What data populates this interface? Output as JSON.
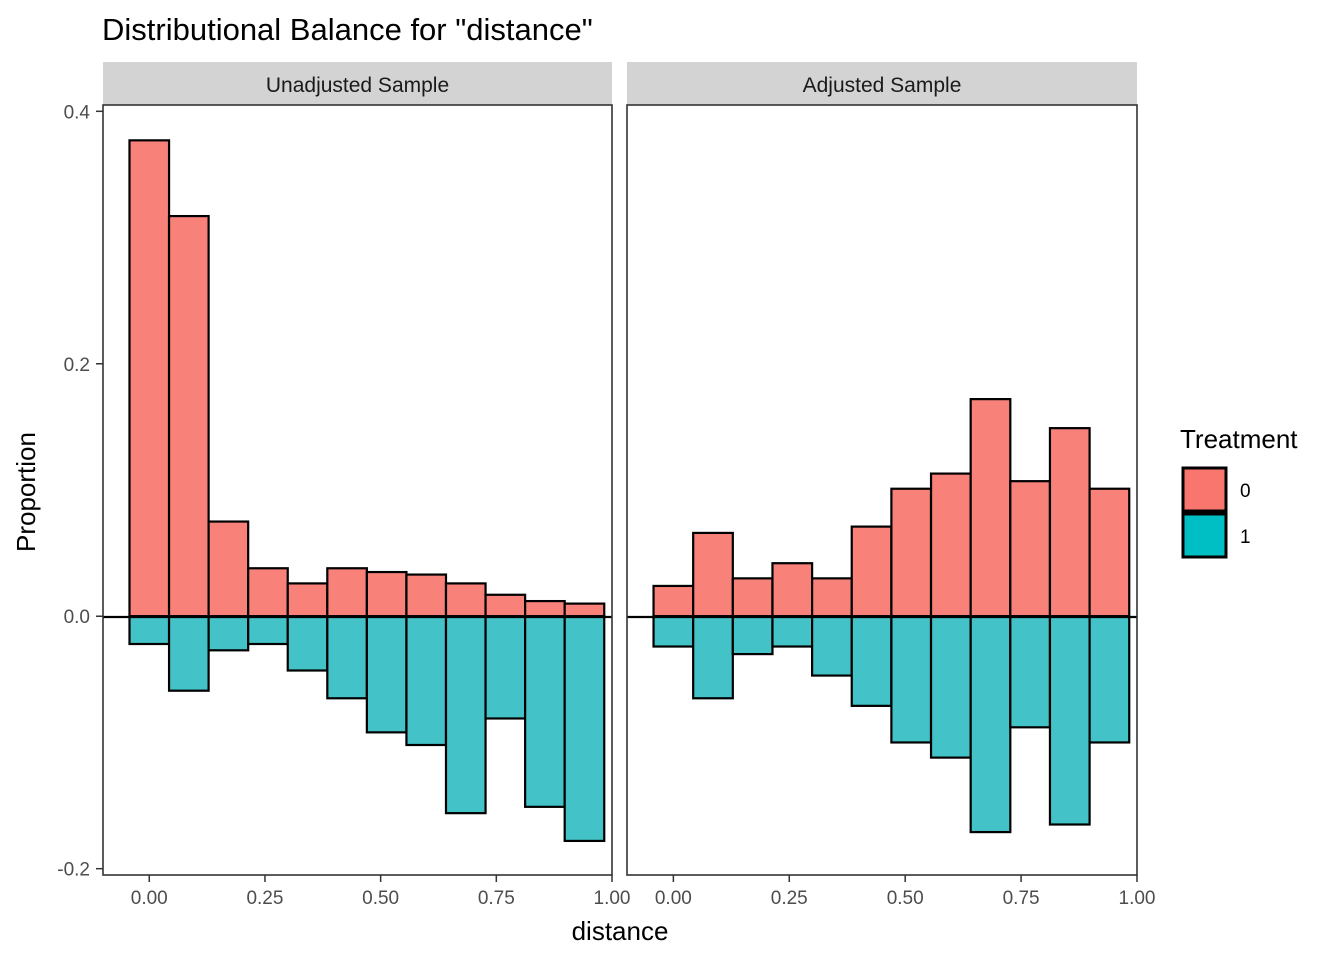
{
  "chart_data": {
    "type": "bar",
    "title": "Distributional Balance for \"distance\"",
    "xlabel": "distance",
    "ylabel": "Proportion",
    "xlim": [
      -0.1,
      1.0
    ],
    "ylim": [
      -0.205,
      0.405
    ],
    "x_ticks": [
      0.0,
      0.25,
      0.5,
      0.75,
      1.0
    ],
    "x_tick_labels": [
      "0.00",
      "0.25",
      "0.50",
      "0.75",
      "1.00"
    ],
    "y_ticks": [
      -0.2,
      0.0,
      0.2,
      0.4
    ],
    "y_tick_labels": [
      "-0.2",
      "0.0",
      "0.2",
      "0.4"
    ],
    "bin_width": 0.0855,
    "bin_centers": [
      0.0,
      0.0855,
      0.171,
      0.2565,
      0.342,
      0.4275,
      0.513,
      0.5985,
      0.684,
      0.7695,
      0.855,
      0.9405
    ],
    "legend": {
      "title": "Treatment",
      "position": "right",
      "entries": [
        {
          "label": "0",
          "color": "#F8766D"
        },
        {
          "label": "1",
          "color": "#00BFC4"
        }
      ]
    },
    "grid": false,
    "panels": [
      {
        "strip": "Unadjusted Sample",
        "series": [
          {
            "name": "0",
            "values": [
              0.377,
              0.317,
              0.075,
              0.038,
              0.026,
              0.038,
              0.035,
              0.033,
              0.026,
              0.017,
              0.012,
              0.01
            ]
          },
          {
            "name": "1",
            "values": [
              0.022,
              0.059,
              0.027,
              0.022,
              0.043,
              0.065,
              0.092,
              0.102,
              0.156,
              0.081,
              0.151,
              0.178
            ]
          }
        ]
      },
      {
        "strip": "Adjusted Sample",
        "series": [
          {
            "name": "0",
            "values": [
              0.024,
              0.066,
              0.03,
              0.042,
              0.03,
              0.071,
              0.101,
              0.113,
              0.172,
              0.107,
              0.149,
              0.101
            ]
          },
          {
            "name": "1",
            "values": [
              0.024,
              0.065,
              0.03,
              0.024,
              0.047,
              0.071,
              0.1,
              0.112,
              0.171,
              0.088,
              0.165,
              0.1
            ]
          }
        ]
      }
    ]
  }
}
